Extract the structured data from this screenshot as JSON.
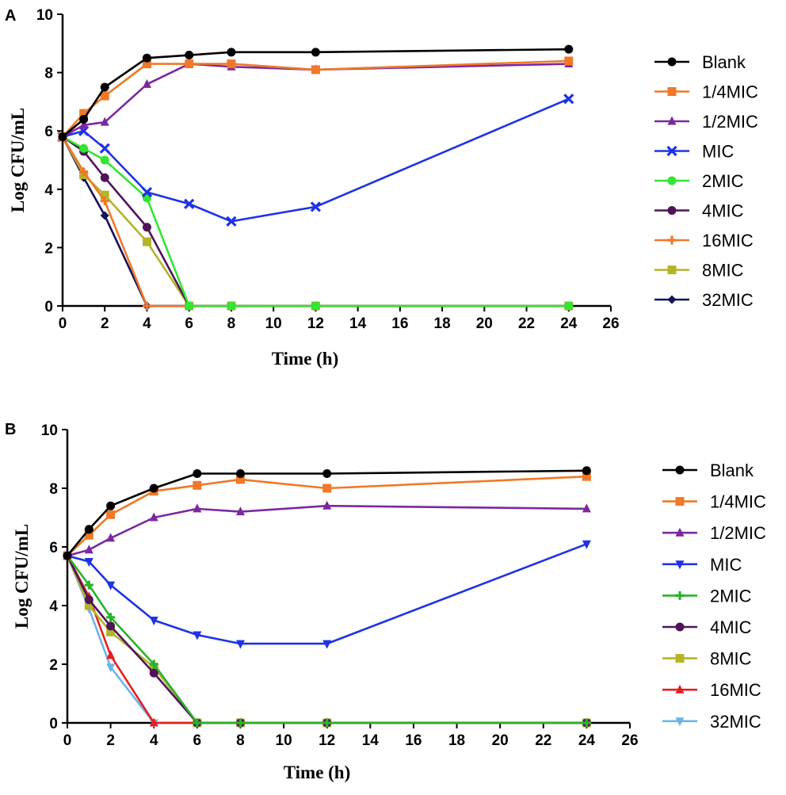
{
  "chart_data": [
    {
      "panel": "A",
      "type": "line",
      "xlabel": "Time (h)",
      "ylabel": "Log CFU/mL",
      "xlim": [
        0,
        26
      ],
      "ylim": [
        0,
        10
      ],
      "xticks": [
        0,
        2,
        4,
        6,
        8,
        10,
        12,
        14,
        16,
        18,
        20,
        22,
        24,
        26
      ],
      "yticks": [
        0,
        2,
        4,
        6,
        8,
        10
      ],
      "x": [
        0,
        1,
        2,
        4,
        6,
        8,
        12,
        24
      ],
      "series": [
        {
          "name": "Blank",
          "color": "#000000",
          "marker": "circle",
          "values": [
            5.8,
            6.4,
            7.5,
            8.5,
            8.6,
            8.7,
            8.7,
            8.8
          ]
        },
        {
          "name": "1/4MIC",
          "color": "#F07828",
          "marker": "square",
          "values": [
            5.8,
            6.6,
            7.2,
            8.3,
            8.3,
            8.3,
            8.1,
            8.4
          ]
        },
        {
          "name": "1/2MIC",
          "color": "#7B28A0",
          "marker": "triangle",
          "values": [
            5.8,
            6.2,
            6.3,
            7.6,
            8.3,
            8.2,
            8.1,
            8.3
          ]
        },
        {
          "name": "MIC",
          "color": "#1E32E6",
          "marker": "cross",
          "values": [
            5.8,
            6.0,
            5.4,
            3.9,
            3.5,
            2.9,
            3.4,
            7.1
          ]
        },
        {
          "name": "2MIC",
          "color": "#32E632",
          "marker": "circle",
          "values": [
            5.8,
            5.4,
            5.0,
            3.7,
            0,
            0,
            0,
            0
          ]
        },
        {
          "name": "4MIC",
          "color": "#50145A",
          "marker": "circle",
          "values": [
            5.8,
            5.3,
            4.4,
            2.7,
            0,
            0,
            0,
            0
          ]
        },
        {
          "name": "16MIC",
          "color": "#F07828",
          "marker": "plus",
          "values": [
            5.8,
            4.6,
            3.6,
            0,
            0,
            0,
            0,
            0
          ]
        },
        {
          "name": "8MIC",
          "color": "#B4B428",
          "marker": "square",
          "values": [
            5.8,
            4.5,
            3.8,
            2.2,
            0,
            0,
            0,
            0
          ]
        },
        {
          "name": "32MIC",
          "color": "#14145A",
          "marker": "diamond",
          "values": [
            5.8,
            4.4,
            3.1,
            0,
            0,
            0,
            0,
            0
          ]
        }
      ]
    },
    {
      "panel": "B",
      "type": "line",
      "xlabel": "Time (h)",
      "ylabel": "Log CFU/mL",
      "xlim": [
        0,
        26
      ],
      "ylim": [
        0,
        10
      ],
      "xticks": [
        0,
        2,
        4,
        6,
        8,
        10,
        12,
        14,
        16,
        18,
        20,
        22,
        24,
        26
      ],
      "yticks": [
        0,
        2,
        4,
        6,
        8,
        10
      ],
      "x": [
        0,
        1,
        2,
        4,
        6,
        8,
        12,
        24
      ],
      "series": [
        {
          "name": "Blank",
          "color": "#000000",
          "marker": "circle",
          "values": [
            5.7,
            6.6,
            7.4,
            8.0,
            8.5,
            8.5,
            8.5,
            8.6
          ]
        },
        {
          "name": "1/4MIC",
          "color": "#F07828",
          "marker": "square",
          "values": [
            5.7,
            6.4,
            7.1,
            7.9,
            8.1,
            8.3,
            8.0,
            8.4
          ]
        },
        {
          "name": "1/2MIC",
          "color": "#7B28A0",
          "marker": "triangle",
          "values": [
            5.7,
            5.9,
            6.3,
            7.0,
            7.3,
            7.2,
            7.4,
            7.3
          ]
        },
        {
          "name": "MIC",
          "color": "#1E32E6",
          "marker": "tri-down",
          "values": [
            5.7,
            5.5,
            4.7,
            3.5,
            3.0,
            2.7,
            2.7,
            6.1
          ]
        },
        {
          "name": "2MIC",
          "color": "#28B428",
          "marker": "plus",
          "values": [
            5.7,
            4.7,
            3.6,
            2.0,
            0,
            0,
            0,
            0
          ]
        },
        {
          "name": "4MIC",
          "color": "#50145A",
          "marker": "circle",
          "values": [
            5.7,
            4.2,
            3.3,
            1.7,
            0,
            0,
            0,
            0
          ]
        },
        {
          "name": "8MIC",
          "color": "#B4B428",
          "marker": "square",
          "values": [
            5.7,
            4.0,
            3.1,
            1.9,
            0,
            0,
            0,
            0
          ]
        },
        {
          "name": "16MIC",
          "color": "#E61E1E",
          "marker": "triangle",
          "values": [
            5.7,
            4.3,
            2.3,
            0,
            0,
            0,
            0,
            0
          ]
        },
        {
          "name": "32MIC",
          "color": "#6EB4E6",
          "marker": "tri-down",
          "values": [
            5.7,
            3.9,
            1.9,
            0,
            0,
            0,
            0,
            0
          ]
        }
      ]
    }
  ]
}
